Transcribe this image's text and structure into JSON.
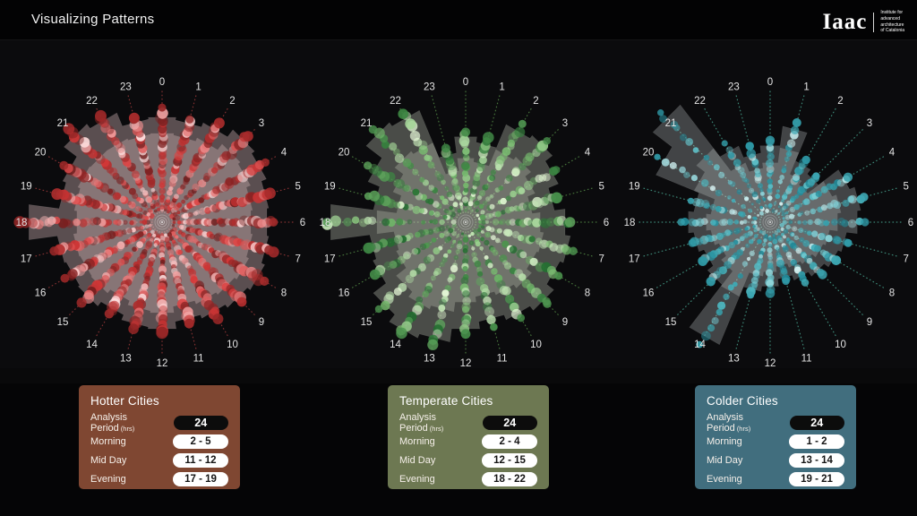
{
  "header": {
    "title": "Visualizing Patterns",
    "logo": {
      "wordmark": "Iaac",
      "tagline_lines": [
        "Institute for",
        "advanced",
        "architecture",
        "of Catalonia"
      ]
    }
  },
  "cards": [
    {
      "name": "hotter-cities",
      "bg": "#7f4732",
      "title": "Hotter Cities",
      "rows": [
        {
          "label": "Analysis Period",
          "label_suffix": "(hrs)",
          "value": "24",
          "pill": "dark"
        },
        {
          "label": "Morning",
          "value": "2 - 5",
          "pill": "light"
        },
        {
          "label": "Mid Day",
          "value": "11 - 12",
          "pill": "light"
        },
        {
          "label": "Evening",
          "value": "17 - 19",
          "pill": "light"
        }
      ]
    },
    {
      "name": "temperate-cities",
      "bg": "#6d7852",
      "title": "Temperate Cities",
      "rows": [
        {
          "label": "Analysis Period",
          "label_suffix": "(hrs)",
          "value": "24",
          "pill": "dark"
        },
        {
          "label": "Morning",
          "value": "2 - 4",
          "pill": "light"
        },
        {
          "label": "Mid Day",
          "value": "12 - 15",
          "pill": "light"
        },
        {
          "label": "Evening",
          "value": "18 - 22",
          "pill": "light"
        }
      ]
    },
    {
      "name": "colder-cities",
      "bg": "#416e7e",
      "title": "Colder Cities",
      "rows": [
        {
          "label": "Analysis Period",
          "label_suffix": "(hrs)",
          "value": "24",
          "pill": "dark"
        },
        {
          "label": "Morning",
          "value": "1 - 2",
          "pill": "light"
        },
        {
          "label": "Mid Day",
          "value": "13 - 14",
          "pill": "light"
        },
        {
          "label": "Evening",
          "value": "19 - 21",
          "pill": "light"
        }
      ]
    }
  ],
  "chart_data": [
    {
      "type": "polar-rose-scatter",
      "name": "hotter-cities",
      "angle_zero": "top",
      "direction": "clockwise",
      "hour_labels": [
        "0",
        "1",
        "2",
        "3",
        "4",
        "5",
        "6",
        "7",
        "8",
        "9",
        "10",
        "11",
        "12",
        "13",
        "14",
        "15",
        "16",
        "17",
        "18",
        "19",
        "20",
        "21",
        "22",
        "23"
      ],
      "label_radius": 157,
      "spoke_end_radius": 147,
      "rose_radii_outer": [
        118,
        115,
        120,
        130,
        126,
        120,
        118,
        120,
        124,
        120,
        116,
        112,
        120,
        118,
        112,
        118,
        116,
        118,
        150,
        116,
        120,
        138,
        132,
        116
      ],
      "rose_radii_inner": [
        100,
        98,
        102,
        110,
        107,
        102,
        100,
        102,
        105,
        102,
        99,
        95,
        102,
        100,
        95,
        100,
        99,
        100,
        96,
        99,
        102,
        101,
        101,
        99
      ],
      "dots_per_ray": 30,
      "dot_scale": 1.05,
      "seed": 11,
      "colors": {
        "fill": "#f2cfd2",
        "fill_opacity_outer": 0.34,
        "fill_opacity_inner": 0.3,
        "spoke": "#8a3333",
        "dot_dark": "#6e1c1c",
        "dot_mid": "#d93838",
        "dot_light": "#ffe3e3",
        "label": "#e4e4e4"
      }
    },
    {
      "type": "polar-rose-scatter",
      "name": "temperate-cities",
      "angle_zero": "top",
      "direction": "clockwise",
      "hour_labels": [
        "0",
        "1",
        "2",
        "3",
        "4",
        "5",
        "6",
        "7",
        "8",
        "9",
        "10",
        "11",
        "12",
        "13",
        "14",
        "15",
        "16",
        "17",
        "18",
        "19",
        "20",
        "21",
        "22",
        "23"
      ],
      "label_radius": 157,
      "spoke_end_radius": 147,
      "rose_radii_outer": [
        96,
        90,
        118,
        122,
        112,
        100,
        112,
        118,
        114,
        124,
        118,
        112,
        120,
        135,
        140,
        130,
        112,
        108,
        152,
        104,
        118,
        140,
        135,
        78
      ],
      "rose_radii_inner": [
        72,
        68,
        88,
        92,
        84,
        75,
        84,
        88,
        86,
        93,
        88,
        84,
        90,
        101,
        105,
        98,
        84,
        81,
        100,
        78,
        88,
        100,
        96,
        58
      ],
      "dots_per_ray": 18,
      "dot_scale": 1.0,
      "seed": 23,
      "colors": {
        "fill": "#dfe3d2",
        "fill_opacity_outer": 0.3,
        "fill_opacity_inner": 0.26,
        "spoke": "#4a7a3e",
        "dot_dark": "#1f6b2d",
        "dot_mid": "#7cbf72",
        "dot_light": "#efffe0",
        "label": "#e4e4e4"
      }
    },
    {
      "type": "polar-rose-scatter",
      "name": "colder-cities",
      "angle_zero": "top",
      "direction": "clockwise",
      "hour_labels": [
        "0",
        "1",
        "2",
        "3",
        "4",
        "5",
        "6",
        "7",
        "8",
        "9",
        "10",
        "11",
        "12",
        "13",
        "14",
        "15",
        "16",
        "17",
        "18",
        "19",
        "20",
        "21",
        "22",
        "23"
      ],
      "label_radius": 157,
      "spoke_end_radius": 147,
      "rose_radii_outer": [
        86,
        108,
        74,
        68,
        96,
        102,
        98,
        86,
        82,
        76,
        70,
        64,
        72,
        78,
        148,
        88,
        80,
        86,
        92,
        86,
        138,
        165,
        92,
        78
      ],
      "rose_radii_inner": [
        67,
        84,
        58,
        53,
        75,
        80,
        76,
        67,
        64,
        59,
        55,
        50,
        56,
        61,
        90,
        69,
        62,
        67,
        72,
        67,
        92,
        104,
        72,
        61
      ],
      "dots_per_ray": 15,
      "dot_scale": 0.85,
      "seed": 37,
      "colors": {
        "fill": "#d3dcdc",
        "fill_opacity_outer": 0.28,
        "fill_opacity_inner": 0.26,
        "spoke": "#3f8f7d",
        "dot_dark": "#1f8796",
        "dot_mid": "#4ebac4",
        "dot_light": "#dcf7f7",
        "label": "#e4e4e4"
      }
    }
  ]
}
